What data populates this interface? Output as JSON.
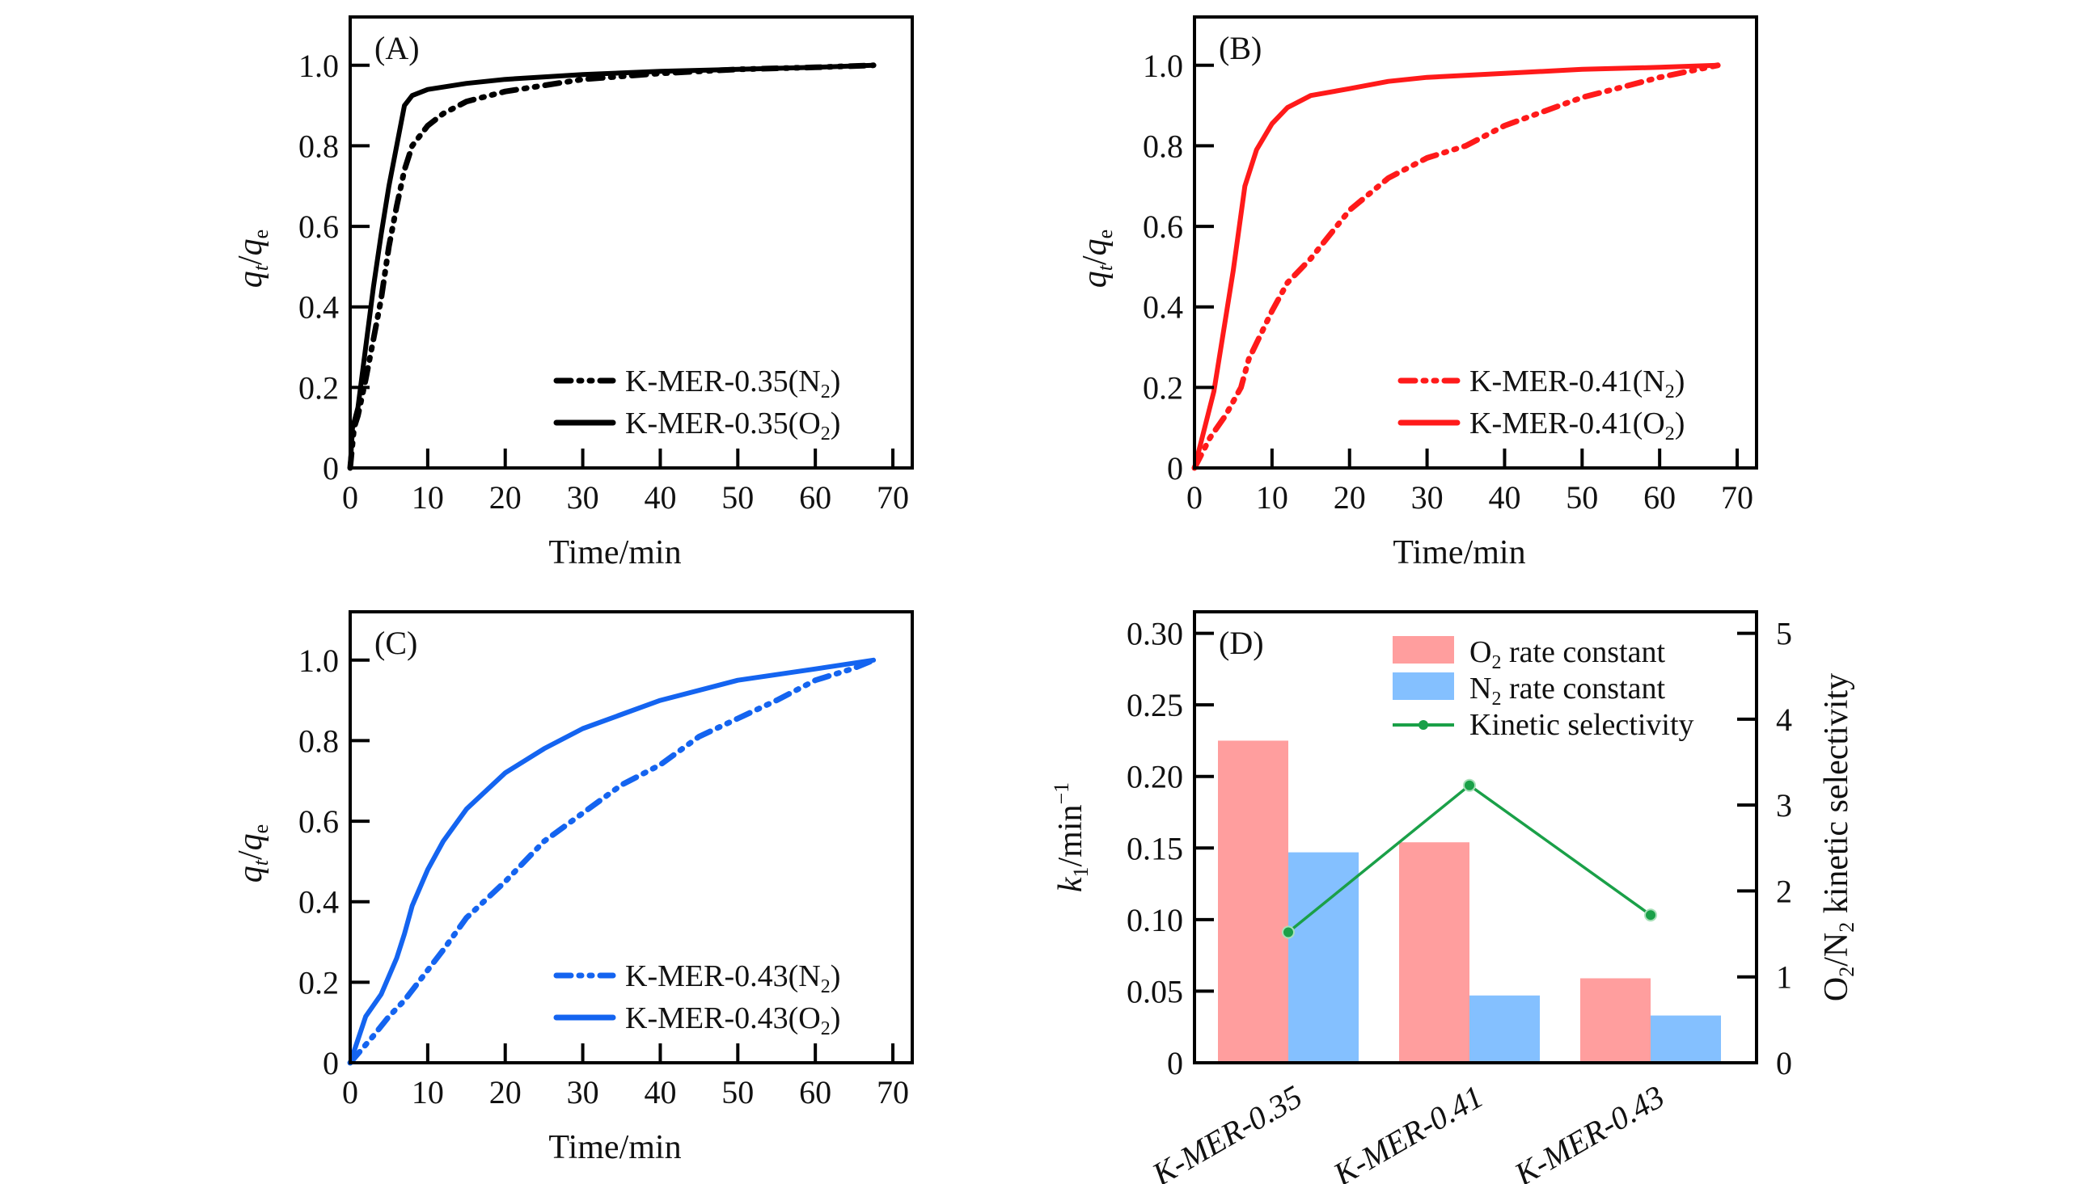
{
  "figure": {
    "colors": {
      "panelA": "#000000",
      "panelB": "#ff1a1a",
      "panelC": "#1464f0",
      "o2_bar": "#ff9e9e",
      "n2_bar": "#84c0ff",
      "selectivity": "#1aa048"
    }
  },
  "chart_data": [
    {
      "type": "line",
      "panel_label": "(A)",
      "xlabel": "Time/min",
      "ylabel": "q_t/q_e",
      "ylabel_main": "q",
      "ylabel_sub1": "t",
      "ylabel_slash": "/",
      "ylabel_sub2": "e",
      "xlim": [
        0,
        72.5
      ],
      "ylim": [
        0,
        1.12
      ],
      "xticks": [
        0,
        10,
        20,
        30,
        40,
        50,
        60,
        70
      ],
      "xtick_labels": [
        "0",
        "10",
        "20",
        "30",
        "40",
        "50",
        "60",
        "70"
      ],
      "yticks": [
        0,
        0.2,
        0.4,
        0.6,
        0.8,
        1.0
      ],
      "ytick_labels": [
        "0",
        "0.2",
        "0.4",
        "0.6",
        "0.8",
        "1.0"
      ],
      "grid": false,
      "legend_position": "bottom-right",
      "series": [
        {
          "name": "K-MER-0.35(N2)",
          "legend_main": "K-MER-0.35(N",
          "legend_sub": "2",
          "legend_end": ")",
          "style": "dash-dot-dot",
          "x": [
            0,
            0.5,
            1,
            2,
            3,
            4,
            5,
            6,
            7,
            8,
            10,
            12,
            15,
            20,
            25,
            30,
            40,
            50,
            60,
            67.5
          ],
          "y": [
            0,
            0.1,
            0.13,
            0.22,
            0.32,
            0.42,
            0.55,
            0.65,
            0.74,
            0.8,
            0.85,
            0.88,
            0.91,
            0.935,
            0.95,
            0.965,
            0.98,
            0.99,
            0.995,
            1.0
          ]
        },
        {
          "name": "K-MER-0.35(O2)",
          "legend_main": "K-MER-0.35(O",
          "legend_sub": "2",
          "legend_end": ")",
          "style": "solid",
          "x": [
            0,
            0.3,
            1,
            2,
            3,
            4,
            5,
            6,
            7,
            8,
            10,
            15,
            20,
            30,
            40,
            50,
            60,
            67.5
          ],
          "y": [
            0,
            0.1,
            0.15,
            0.3,
            0.45,
            0.58,
            0.7,
            0.8,
            0.9,
            0.925,
            0.94,
            0.955,
            0.965,
            0.977,
            0.985,
            0.99,
            0.995,
            1.0
          ]
        }
      ]
    },
    {
      "type": "line",
      "panel_label": "(B)",
      "xlabel": "Time/min",
      "ylabel": "q_t/q_e",
      "ylabel_main": "q",
      "ylabel_sub1": "t",
      "ylabel_slash": "/",
      "ylabel_sub2": "e",
      "xlim": [
        0,
        72.5
      ],
      "ylim": [
        0,
        1.12
      ],
      "xticks": [
        0,
        10,
        20,
        30,
        40,
        50,
        60,
        70
      ],
      "xtick_labels": [
        "0",
        "10",
        "20",
        "30",
        "40",
        "50",
        "60",
        "70"
      ],
      "yticks": [
        0,
        0.2,
        0.4,
        0.6,
        0.8,
        1.0
      ],
      "ytick_labels": [
        "0",
        "0.2",
        "0.4",
        "0.6",
        "0.8",
        "1.0"
      ],
      "grid": false,
      "legend_position": "bottom-right",
      "series": [
        {
          "name": "K-MER-0.41(N2)",
          "legend_main": "K-MER-0.41(N",
          "legend_sub": "2",
          "legend_end": ")",
          "style": "dash-dot-dot",
          "x": [
            0,
            2,
            4,
            6,
            7,
            10,
            12,
            15,
            20,
            25,
            30,
            35,
            40,
            50,
            60,
            67.5
          ],
          "y": [
            0,
            0.075,
            0.13,
            0.2,
            0.27,
            0.39,
            0.46,
            0.52,
            0.64,
            0.72,
            0.77,
            0.8,
            0.85,
            0.92,
            0.97,
            1.0
          ]
        },
        {
          "name": "K-MER-0.41(O2)",
          "legend_main": "K-MER-0.41(O",
          "legend_sub": "2",
          "legend_end": ")",
          "style": "solid",
          "x": [
            0,
            2.5,
            5,
            6.5,
            8,
            10,
            12,
            15,
            20,
            25,
            30,
            40,
            50,
            60,
            67.5
          ],
          "y": [
            0,
            0.19,
            0.49,
            0.7,
            0.79,
            0.855,
            0.895,
            0.925,
            0.942,
            0.96,
            0.97,
            0.98,
            0.99,
            0.995,
            1.0
          ]
        }
      ]
    },
    {
      "type": "line",
      "panel_label": "(C)",
      "xlabel": "Time/min",
      "ylabel": "q_t/q_e",
      "ylabel_main": "q",
      "ylabel_sub1": "t",
      "ylabel_slash": "/",
      "ylabel_sub2": "e",
      "xlim": [
        0,
        72.5
      ],
      "ylim": [
        0,
        1.12
      ],
      "xticks": [
        0,
        10,
        20,
        30,
        40,
        50,
        60,
        70
      ],
      "xtick_labels": [
        "0",
        "10",
        "20",
        "30",
        "40",
        "50",
        "60",
        "70"
      ],
      "yticks": [
        0,
        0.2,
        0.4,
        0.6,
        0.8,
        1.0
      ],
      "ytick_labels": [
        "0",
        "0.2",
        "0.4",
        "0.6",
        "0.8",
        "1.0"
      ],
      "grid": false,
      "legend_position": "bottom-right",
      "series": [
        {
          "name": "K-MER-0.43(N2)",
          "legend_main": "K-MER-0.43(N",
          "legend_sub": "2",
          "legend_end": ")",
          "style": "dash-dot-dot",
          "x": [
            0,
            3,
            5,
            7,
            10,
            12,
            15,
            20,
            25,
            30,
            35,
            40,
            45,
            50,
            55,
            60,
            65,
            67.5
          ],
          "y": [
            0,
            0.067,
            0.115,
            0.155,
            0.23,
            0.28,
            0.36,
            0.45,
            0.55,
            0.62,
            0.69,
            0.74,
            0.81,
            0.855,
            0.9,
            0.95,
            0.98,
            1.0
          ]
        },
        {
          "name": "K-MER-0.43(O2)",
          "legend_main": "K-MER-0.43(O",
          "legend_sub": "2",
          "legend_end": ")",
          "style": "solid",
          "x": [
            0,
            2,
            4,
            6,
            7,
            8,
            10,
            12,
            15,
            20,
            25,
            30,
            35,
            40,
            50,
            60,
            67.5
          ],
          "y": [
            0,
            0.115,
            0.17,
            0.26,
            0.32,
            0.39,
            0.48,
            0.55,
            0.63,
            0.72,
            0.78,
            0.83,
            0.865,
            0.9,
            0.95,
            0.978,
            1.0
          ]
        }
      ]
    },
    {
      "type": "bar",
      "panel_label": "(D)",
      "categories": [
        "K-MER-0.35",
        "K-MER-0.41",
        "K-MER-0.43"
      ],
      "ylabel": "k1/min-1",
      "ylabel_main": "k",
      "ylabel_sub": "1",
      "ylabel_rest": "/min",
      "ylabel_sup": "−1",
      "y2label": "O2/N2 kinetic selectivity",
      "y2label_a": "O",
      "y2label_sub_a": "2",
      "y2label_b": "/N",
      "y2label_sub_b": "2",
      "y2label_c": " kinetic selectivity",
      "ylim": [
        0,
        0.315
      ],
      "y2lim": [
        0,
        5.25
      ],
      "yticks": [
        0,
        0.05,
        0.1,
        0.15,
        0.2,
        0.25,
        0.3
      ],
      "ytick_labels": [
        "0",
        "0.05",
        "0.10",
        "0.15",
        "0.20",
        "0.25",
        "0.30"
      ],
      "y2ticks": [
        0,
        1,
        2,
        3,
        4,
        5
      ],
      "y2tick_labels": [
        "0",
        "1",
        "2",
        "3",
        "4",
        "5"
      ],
      "grid": false,
      "legend_position": "top-right",
      "series": [
        {
          "name": "O2 rate constant",
          "legend_main": "O",
          "legend_sub": "2",
          "legend_end": " rate constant",
          "axis": "left",
          "kind": "bar",
          "values": [
            0.225,
            0.154,
            0.059
          ]
        },
        {
          "name": "N2 rate constant",
          "legend_main": "N",
          "legend_sub": "2",
          "legend_end": " rate constant",
          "axis": "left",
          "kind": "bar",
          "values": [
            0.147,
            0.047,
            0.033
          ]
        },
        {
          "name": "Kinetic selectivity",
          "legend_main": "Kinetic selectivity",
          "legend_sub": "",
          "legend_end": "",
          "axis": "right",
          "kind": "line",
          "values": [
            1.52,
            3.23,
            1.72
          ]
        }
      ]
    }
  ]
}
